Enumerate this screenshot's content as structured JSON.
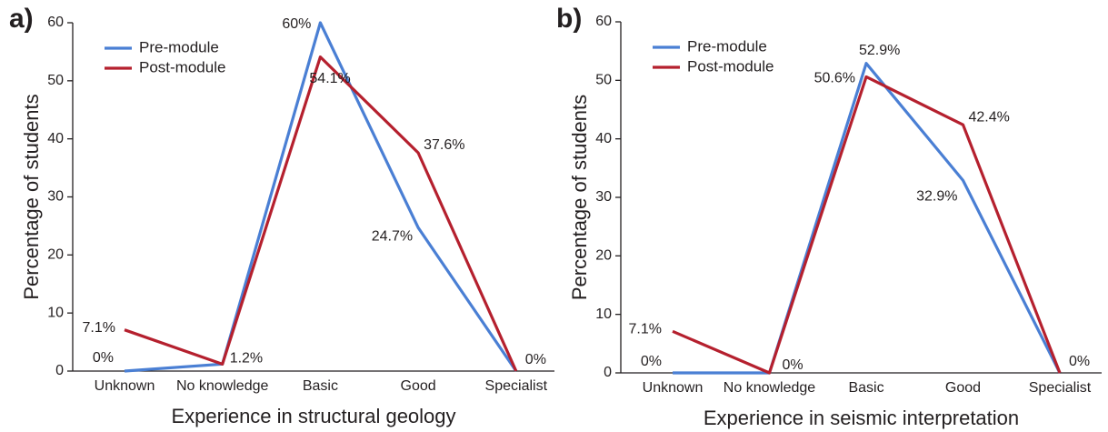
{
  "chart_data": [
    {
      "type": "line",
      "panel_label": "a)",
      "xlabel": "Experience in structural geology",
      "ylabel": "Percentage of students",
      "categories": [
        "Unknown",
        "No knowledge",
        "Basic",
        "Good",
        "Specialist"
      ],
      "ylim": [
        0,
        60
      ],
      "yticks": [
        0,
        10,
        20,
        30,
        40,
        50,
        60
      ],
      "series": [
        {
          "name": "Pre-module",
          "color": "#4a7fd4",
          "values": [
            0,
            1.2,
            60,
            24.7,
            0
          ],
          "value_labels": [
            "0%",
            "1.2%",
            "60%",
            "24.7%",
            "0%"
          ]
        },
        {
          "name": "Post-module",
          "color": "#b5202e",
          "values": [
            7.1,
            1.2,
            54.1,
            37.6,
            0
          ],
          "value_labels": [
            "7.1%",
            null,
            "54.1%",
            "37.6%",
            null
          ]
        }
      ]
    },
    {
      "type": "line",
      "panel_label": "b)",
      "xlabel": "Experience in seismic interpretation",
      "ylabel": "Percentage of students",
      "categories": [
        "Unknown",
        "No knowledge",
        "Basic",
        "Good",
        "Specialist"
      ],
      "ylim": [
        0,
        60
      ],
      "yticks": [
        0,
        10,
        20,
        30,
        40,
        50,
        60
      ],
      "series": [
        {
          "name": "Pre-module",
          "color": "#4a7fd4",
          "values": [
            0,
            0,
            52.9,
            32.9,
            0
          ],
          "value_labels": [
            "0%",
            "0%",
            "52.9%",
            "32.9%",
            "0%"
          ]
        },
        {
          "name": "Post-module",
          "color": "#b5202e",
          "values": [
            7.1,
            0,
            50.6,
            42.4,
            0
          ],
          "value_labels": [
            "7.1%",
            null,
            "50.6%",
            "42.4%",
            null
          ]
        }
      ]
    }
  ]
}
